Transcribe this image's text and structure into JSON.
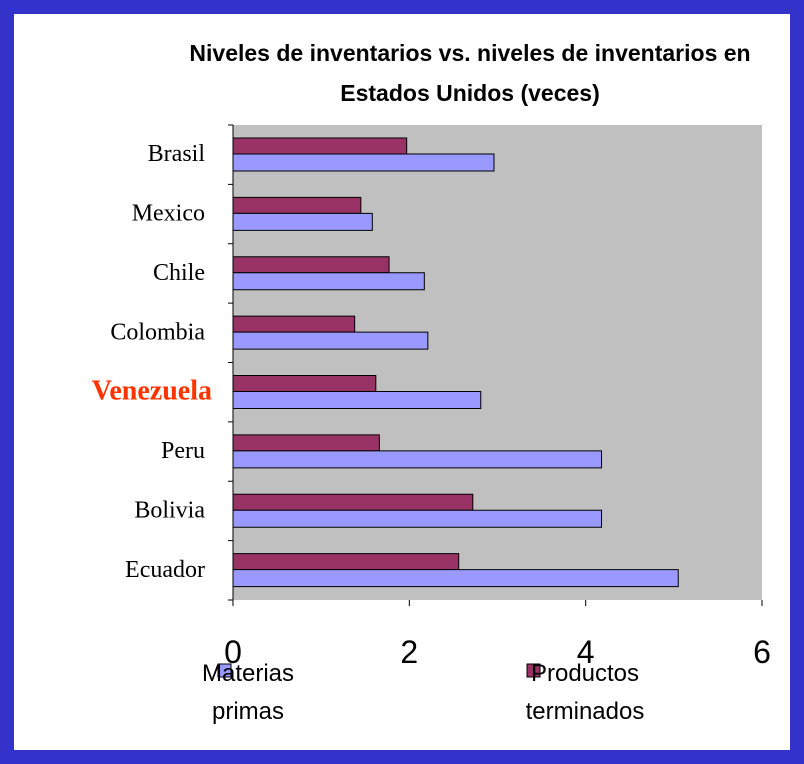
{
  "chart_data": {
    "type": "hbar",
    "title": "Niveles de inventarios vs. niveles de inventarios en Estados Unidos (veces)",
    "categories": [
      "Brasil",
      "Mexico",
      "Chile",
      "Colombia",
      "Venezuela",
      "Peru",
      "Bolivia",
      "Ecuador"
    ],
    "series": [
      {
        "name": "Materias primas",
        "color": "#9999ff",
        "values": [
          2.96,
          1.58,
          2.17,
          2.21,
          2.81,
          4.18,
          4.18,
          5.05
        ]
      },
      {
        "name": "Productos terminados",
        "color": "#993366",
        "values": [
          1.97,
          1.45,
          1.77,
          1.38,
          1.62,
          1.66,
          2.72,
          2.56
        ]
      }
    ],
    "xlim": [
      0,
      6
    ],
    "xticks": [
      0,
      2,
      4,
      6
    ],
    "plot_background": "#c0c0c0",
    "highlight": {
      "category_index": 4,
      "color": "#ff3300"
    }
  }
}
